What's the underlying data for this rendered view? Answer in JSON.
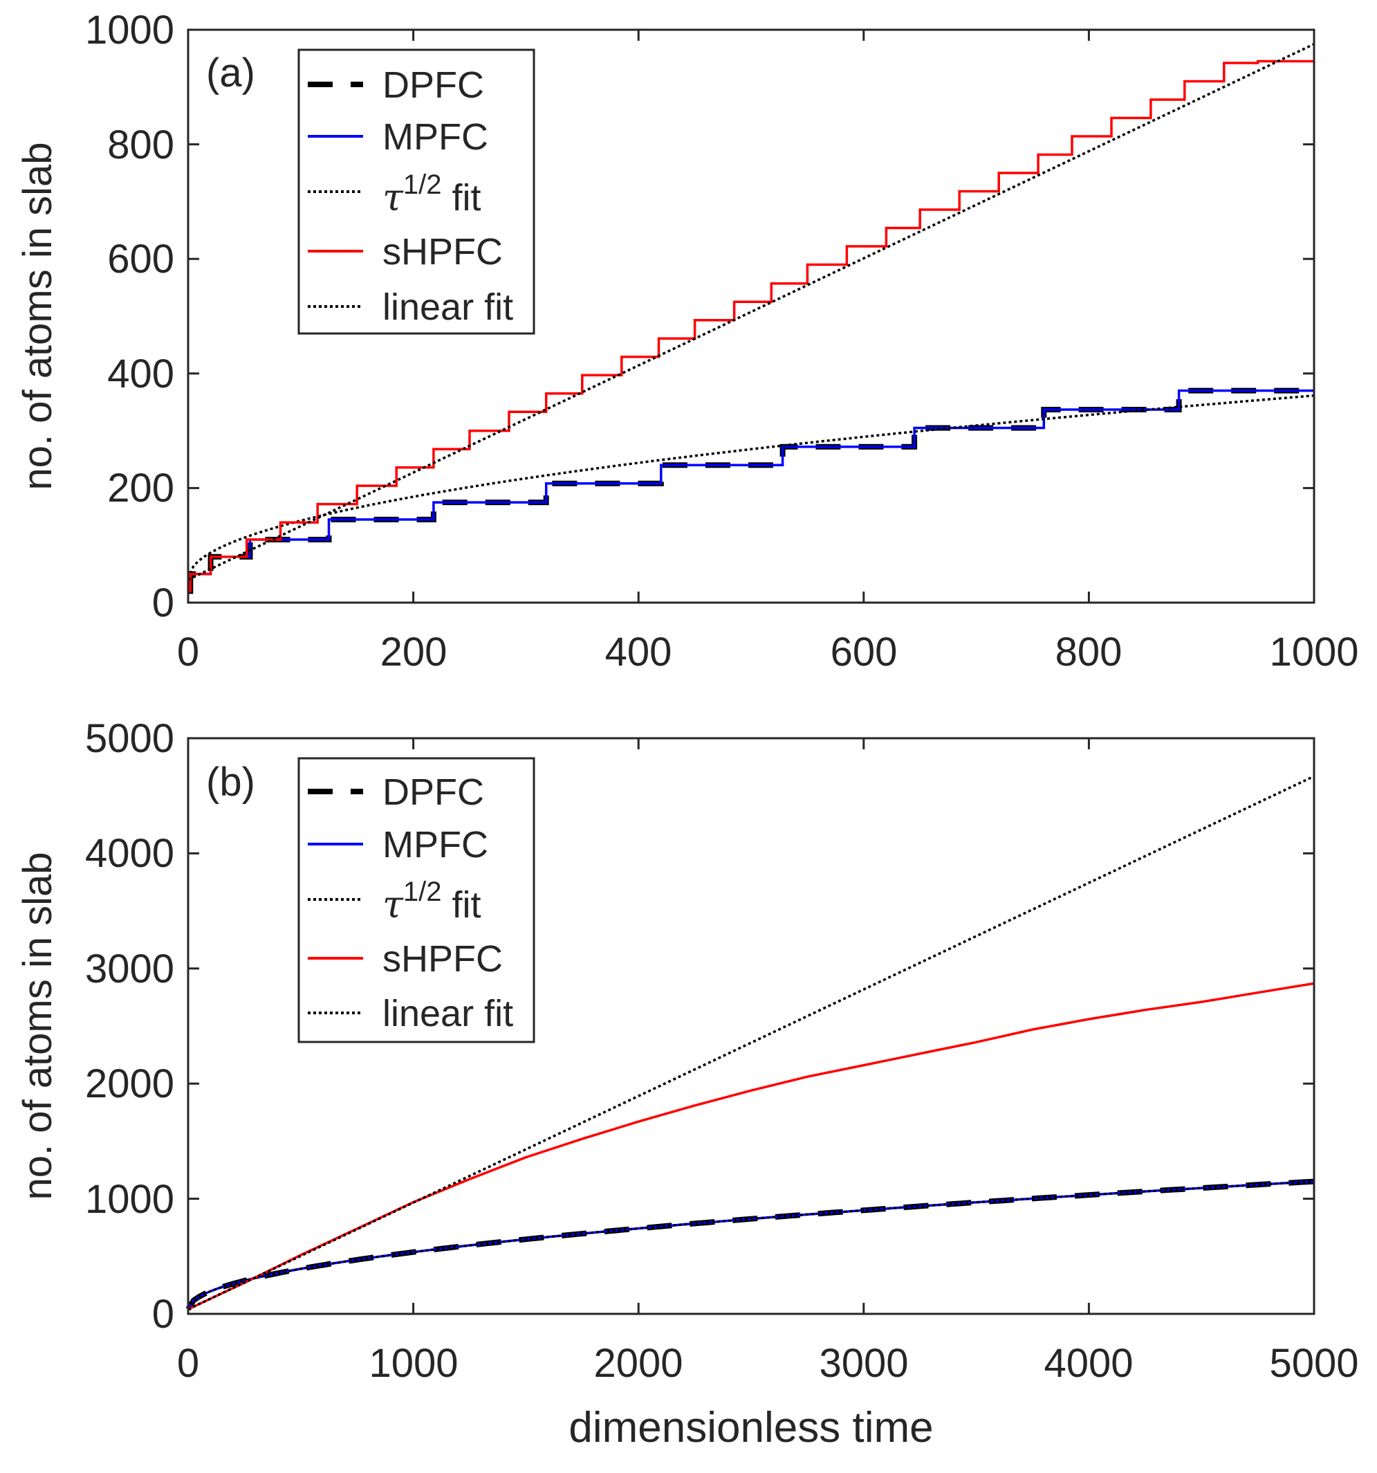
{
  "chart_data": [
    {
      "type": "line",
      "panel_label": "(a)",
      "xlabel": "",
      "ylabel": "no. of atoms in slab",
      "xlim": [
        0,
        1000
      ],
      "ylim": [
        0,
        1000
      ],
      "xticks": [
        "0",
        "200",
        "400",
        "600",
        "800",
        "1000"
      ],
      "yticks": [
        "0",
        "200",
        "400",
        "600",
        "800",
        "1000"
      ],
      "legend_position": "top-left",
      "legend": [
        {
          "prefix": "",
          "label": "DPFC",
          "sup": "",
          "suffix": ""
        },
        {
          "prefix": "",
          "label": "MPFC",
          "sup": "",
          "suffix": ""
        },
        {
          "prefix": "τ",
          "label": "",
          "sup": "1/2",
          "suffix": " fit"
        },
        {
          "prefix": "",
          "label": "sHPFC",
          "sup": "",
          "suffix": ""
        },
        {
          "prefix": "",
          "label": "linear fit",
          "sup": "",
          "suffix": ""
        }
      ],
      "series": [
        {
          "name": "DPFC",
          "style": "dashed",
          "color": "#000000",
          "kind": "step",
          "steps_x": [
            0,
            2,
            20,
            55,
            125,
            218,
            318,
            420,
            528,
            645,
            760,
            880,
            1000
          ],
          "steps_y": [
            20,
            50,
            80,
            110,
            145,
            175,
            208,
            240,
            272,
            305,
            337,
            370,
            370
          ]
        },
        {
          "name": "MPFC",
          "style": "solid",
          "color": "#0000ff",
          "kind": "step",
          "steps_x": [
            0,
            2,
            20,
            55,
            125,
            218,
            318,
            420,
            528,
            645,
            760,
            880,
            1000
          ],
          "steps_y": [
            20,
            50,
            80,
            110,
            145,
            175,
            208,
            240,
            272,
            305,
            337,
            370,
            370
          ]
        },
        {
          "name": "τ^1/2 fit",
          "style": "dotted",
          "color": "#000000",
          "kind": "sqrt",
          "a": 42,
          "b": 10.1,
          "x_max": 1000
        },
        {
          "name": "sHPFC",
          "style": "solid",
          "color": "#ff0000",
          "kind": "step",
          "steps_x": [
            0,
            2,
            20,
            52,
            82,
            115,
            150,
            185,
            218,
            250,
            285,
            318,
            350,
            385,
            418,
            450,
            485,
            518,
            550,
            585,
            620,
            650,
            685,
            720,
            755,
            785,
            820,
            855,
            885,
            920,
            950,
            985,
            1000
          ],
          "steps_y": [
            20,
            50,
            80,
            110,
            140,
            172,
            204,
            236,
            268,
            300,
            333,
            365,
            397,
            429,
            461,
            493,
            525,
            557,
            590,
            622,
            654,
            686,
            718,
            750,
            782,
            814,
            846,
            878,
            910,
            942,
            945,
            945,
            945
          ]
        },
        {
          "name": "linear fit",
          "style": "dotted",
          "color": "#000000",
          "kind": "linear",
          "x": [
            0,
            1000
          ],
          "y": [
            40,
            975
          ]
        }
      ]
    },
    {
      "type": "line",
      "panel_label": "(b)",
      "xlabel": "dimensionless time",
      "ylabel": "no. of atoms in slab",
      "xlim": [
        0,
        5000
      ],
      "ylim": [
        0,
        5000
      ],
      "xticks": [
        "0",
        "1000",
        "2000",
        "3000",
        "4000",
        "5000"
      ],
      "yticks": [
        "0",
        "1000",
        "2000",
        "3000",
        "4000",
        "5000"
      ],
      "legend_position": "top-left",
      "legend": [
        {
          "prefix": "",
          "label": "DPFC",
          "sup": "",
          "suffix": ""
        },
        {
          "prefix": "",
          "label": "MPFC",
          "sup": "",
          "suffix": ""
        },
        {
          "prefix": "τ",
          "label": "",
          "sup": "1/2",
          "suffix": " fit"
        },
        {
          "prefix": "",
          "label": "sHPFC",
          "sup": "",
          "suffix": ""
        },
        {
          "prefix": "",
          "label": "linear fit",
          "sup": "",
          "suffix": ""
        }
      ],
      "series": [
        {
          "name": "DPFC",
          "style": "dashed",
          "color": "#000000",
          "kind": "sqrt",
          "a": 40,
          "b": 15.7,
          "x_max": 5000
        },
        {
          "name": "MPFC",
          "style": "solid",
          "color": "#0000ff",
          "kind": "sqrt",
          "a": 40,
          "b": 15.7,
          "x_max": 5000
        },
        {
          "name": "τ^1/2 fit",
          "style": "dotted",
          "color": "#000000",
          "kind": "sqrt",
          "a": 40,
          "b": 15.7,
          "x_max": 5000
        },
        {
          "name": "sHPFC",
          "style": "solid",
          "color": "#ff0000",
          "kind": "points",
          "x": [
            0,
            250,
            500,
            750,
            1000,
            1250,
            1500,
            1750,
            2000,
            2250,
            2500,
            2750,
            3000,
            3250,
            3500,
            3750,
            4000,
            4250,
            4500,
            4750,
            5000
          ],
          "y": [
            40,
            270,
            510,
            740,
            970,
            1170,
            1360,
            1520,
            1670,
            1810,
            1940,
            2060,
            2160,
            2260,
            2360,
            2470,
            2560,
            2640,
            2710,
            2790,
            2870
          ]
        },
        {
          "name": "linear fit",
          "style": "dotted",
          "color": "#000000",
          "kind": "linear",
          "x": [
            0,
            5000
          ],
          "y": [
            40,
            4670
          ]
        }
      ]
    }
  ]
}
